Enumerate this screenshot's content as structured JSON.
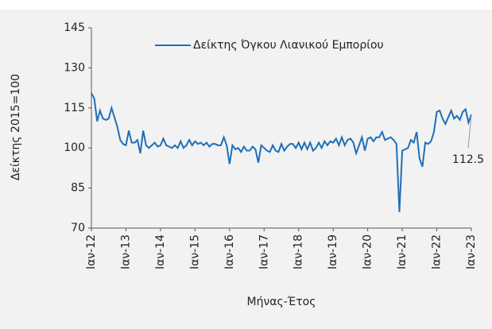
{
  "chart_data": {
    "type": "line",
    "y_label": "Δείκτης 2015=100",
    "x_label": "Μήνας-Έτος",
    "categories": [
      "Ιαν-12",
      null,
      null,
      null,
      null,
      null,
      null,
      null,
      null,
      null,
      null,
      null,
      "Ιαν-13",
      null,
      null,
      null,
      null,
      null,
      null,
      null,
      null,
      null,
      null,
      null,
      "Ιαν-14",
      null,
      null,
      null,
      null,
      null,
      null,
      null,
      null,
      null,
      null,
      null,
      "Ιαν-15",
      null,
      null,
      null,
      null,
      null,
      null,
      null,
      null,
      null,
      null,
      null,
      "Ιαν-16",
      null,
      null,
      null,
      null,
      null,
      null,
      null,
      null,
      null,
      null,
      null,
      "Ιαν-17",
      null,
      null,
      null,
      null,
      null,
      null,
      null,
      null,
      null,
      null,
      null,
      "Ιαν-18",
      null,
      null,
      null,
      null,
      null,
      null,
      null,
      null,
      null,
      null,
      null,
      "Ιαν-19",
      null,
      null,
      null,
      null,
      null,
      null,
      null,
      null,
      null,
      null,
      null,
      "Ιαν-20",
      null,
      null,
      null,
      null,
      null,
      null,
      null,
      null,
      null,
      null,
      null,
      "Ιαν-21",
      null,
      null,
      null,
      null,
      null,
      null,
      null,
      null,
      null,
      null,
      null,
      "Ιαν-22",
      null,
      null,
      null,
      null,
      null,
      null,
      null,
      null,
      null,
      null,
      null,
      "Ιαν-23"
    ],
    "series": [
      {
        "name": "Δείκτης Όγκου Λιανικού Εμπορίου",
        "color": "#1f6fb8",
        "values": [
          120.5,
          118.5,
          110,
          114,
          111,
          110.5,
          111,
          115,
          111.5,
          108,
          103,
          101.5,
          101,
          106.5,
          102,
          102,
          103,
          98,
          106.5,
          101,
          100,
          101,
          102,
          100.5,
          101,
          103.5,
          101,
          100.5,
          100,
          101,
          100,
          102.5,
          100,
          101,
          103,
          101,
          102.5,
          101.5,
          102,
          101,
          102,
          100.5,
          101.5,
          101.5,
          101,
          101,
          104,
          101,
          94,
          101,
          99.5,
          100,
          98.5,
          100.5,
          99,
          99,
          100.5,
          99.5,
          94.5,
          101,
          100,
          99,
          98.5,
          101,
          99,
          98.5,
          101.5,
          99,
          100.5,
          101.5,
          101.5,
          100,
          102,
          99.5,
          102,
          99.5,
          102,
          99,
          100,
          102,
          100,
          102.5,
          101,
          102.5,
          102,
          103.5,
          101,
          104,
          101,
          103,
          103.5,
          102,
          98,
          101,
          104,
          99,
          103.5,
          104,
          102.5,
          104,
          104,
          106,
          103,
          103.5,
          104,
          103,
          101.5,
          76,
          99,
          99.5,
          100,
          103,
          102,
          106,
          96,
          93,
          102,
          101.5,
          102.5,
          106,
          113.5,
          114,
          111,
          109,
          111.5,
          114,
          111,
          112,
          110.5,
          113.5,
          114.5,
          109.5,
          112.5
        ]
      }
    ],
    "ylim": [
      70,
      145
    ],
    "yticks": [
      70,
      85,
      100,
      115,
      130,
      145
    ],
    "grid": false,
    "legend": "top"
  }
}
